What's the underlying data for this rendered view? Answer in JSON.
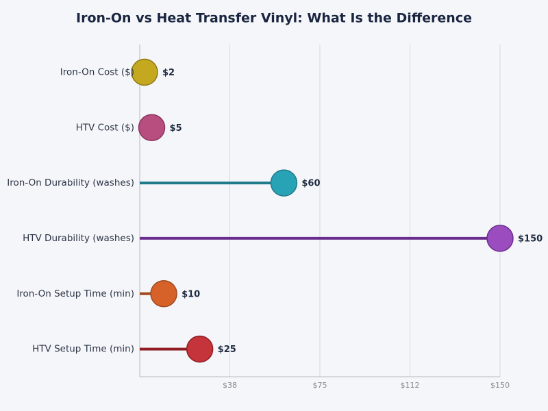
{
  "chart_data": {
    "type": "lollipop",
    "title": "Iron-On vs Heat Transfer Vinyl: What Is the Difference",
    "categories": [
      "Iron-On Cost ($)",
      "HTV Cost ($)",
      "Iron-On Durability (washes)",
      "HTV Durability (washes)",
      "Iron-On Setup Time (min)",
      "HTV Setup Time (min)"
    ],
    "values": [
      2,
      5,
      60,
      150,
      10,
      25
    ],
    "value_labels": [
      "$2",
      "$5",
      "$60",
      "$150",
      "$10",
      "$25"
    ],
    "colors": [
      "#c4a820",
      "#b84e80",
      "#27a3b5",
      "#9b4dbf",
      "#d6622a",
      "#c4343a"
    ],
    "stem_colors": [
      "#8f7a12",
      "#8a3460",
      "#1f7a8a",
      "#6a2d8f",
      "#a04a1e",
      "#8f1e22"
    ],
    "xlim": [
      0,
      150
    ],
    "xticks": [
      {
        "value": 37.5,
        "label": "$38"
      },
      {
        "value": 75,
        "label": "$75"
      },
      {
        "value": 112.5,
        "label": "$112"
      },
      {
        "value": 150,
        "label": "$150"
      }
    ],
    "grid": true
  }
}
